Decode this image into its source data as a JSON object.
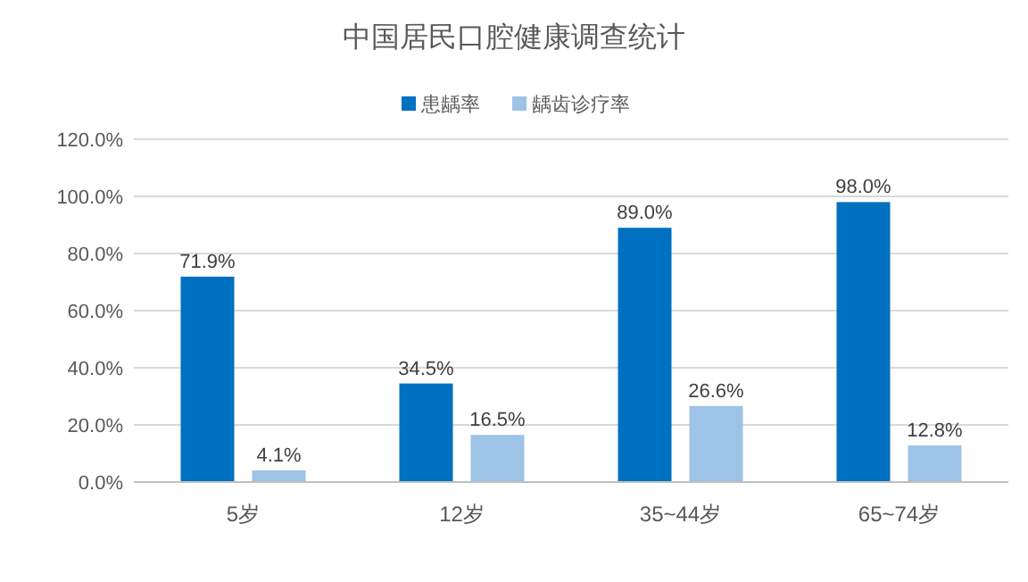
{
  "chart_data": {
    "type": "bar",
    "title": "中国居民口腔健康调查统计",
    "categories": [
      "5岁",
      "12岁",
      "35~44岁",
      "65~74岁"
    ],
    "series": [
      {
        "name": "患龋率",
        "color": "#0070c0",
        "values": [
          71.9,
          34.5,
          89.0,
          98.0
        ],
        "value_labels": [
          "71.9%",
          "34.5%",
          "89.0%",
          "98.0%"
        ]
      },
      {
        "name": "龋齿诊疗率",
        "color": "#9dc3e6",
        "values": [
          4.1,
          16.5,
          26.6,
          12.8
        ],
        "value_labels": [
          "4.1%",
          "16.5%",
          "26.6%",
          "12.8%"
        ]
      }
    ],
    "ylim": [
      0,
      120
    ],
    "yticks": [
      {
        "value": 0,
        "label": "0.0%"
      },
      {
        "value": 20,
        "label": "20.0%"
      },
      {
        "value": 40,
        "label": "40.0%"
      },
      {
        "value": 60,
        "label": "60.0%"
      },
      {
        "value": 80,
        "label": "80.0%"
      },
      {
        "value": 100,
        "label": "100.0%"
      },
      {
        "value": 120,
        "label": "120.0%"
      }
    ],
    "grid": "y",
    "legend": "top"
  }
}
